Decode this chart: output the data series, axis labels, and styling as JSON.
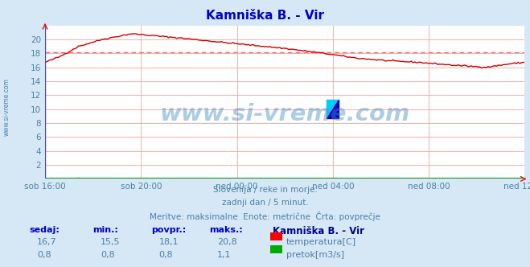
{
  "title": "Kamniška B. - Vir",
  "title_color": "#0000cc",
  "bg_color": "#d6e8f5",
  "plot_bg_color": "#ffffff",
  "xlabel_ticks": [
    "sob 16:00",
    "sob 20:00",
    "ned 00:00",
    "ned 04:00",
    "ned 08:00",
    "ned 12:00"
  ],
  "x_tick_positions": [
    0,
    96,
    192,
    288,
    384,
    480
  ],
  "ylim": [
    0,
    22
  ],
  "yticks": [
    0,
    2,
    4,
    6,
    8,
    10,
    12,
    14,
    16,
    18,
    20
  ],
  "grid_color": "#ffaaaa",
  "avg_line_value": 18.1,
  "avg_line_color": "#ff6666",
  "temp_line_color": "#cc0000",
  "flow_line_color": "#00aa00",
  "watermark_text": "www.si-vreme.com",
  "watermark_color": "#4a90c4",
  "subtitle1": "Slovenija / reke in morje.",
  "subtitle2": "zadnji dan / 5 minut.",
  "subtitle3": "Meritve: maksimalne  Enote: metrične  Črta: povprečje",
  "subtitle_color": "#4a7faa",
  "legend_title": "Kamniška B. - Vir",
  "legend_title_color": "#000088",
  "stats_headers": [
    "sedaj:",
    "min.:",
    "povpr.:",
    "maks.:"
  ],
  "stats_temp": [
    "16,7",
    "15,5",
    "18,1",
    "20,8"
  ],
  "stats_flow": [
    "0,8",
    "0,8",
    "0,8",
    "1,1"
  ],
  "left_label_color": "#4a7faa",
  "tick_color": "#4a7faa"
}
